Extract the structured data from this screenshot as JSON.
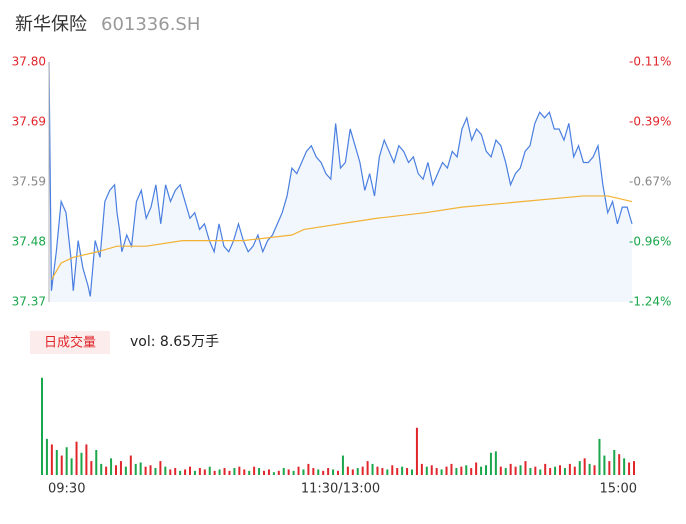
{
  "header": {
    "name": "新华保险",
    "code": "601336.SH"
  },
  "chart_data": [
    {
      "type": "line",
      "xlim": [
        0,
        240
      ],
      "ylim": [
        37.37,
        37.8
      ],
      "yticks": [
        {
          "value": 37.37,
          "label": "37.37"
        },
        {
          "value": 37.4775,
          "label": "37.48"
        },
        {
          "value": 37.585,
          "label": "37.59"
        },
        {
          "value": 37.6925,
          "label": "37.69"
        },
        {
          "value": 37.8,
          "label": "37.80"
        }
      ],
      "ytick_colors": [
        "#1aa64a",
        "#1aa64a",
        "#888888",
        "#e0262b",
        "#e0262b"
      ],
      "y2lim": [
        -1.24,
        -0.11
      ],
      "y2ticks": [
        {
          "value": -1.24,
          "label": "-1.24%"
        },
        {
          "value": -0.9575,
          "label": "-0.96%"
        },
        {
          "value": -0.675,
          "label": "-0.67%"
        },
        {
          "value": -0.3925,
          "label": "-0.39%"
        },
        {
          "value": -0.11,
          "label": "-0.11%"
        }
      ],
      "xticks": [
        {
          "value": 0,
          "label": "09:30"
        },
        {
          "value": 120,
          "label": "11:30/13:00"
        },
        {
          "value": 240,
          "label": "15:00"
        }
      ],
      "series": [
        {
          "color": "#4a7fe0",
          "fill": "#f2f6fd",
          "x": [
            0,
            1,
            3,
            5,
            7,
            9,
            10,
            12,
            14,
            16,
            17,
            19,
            21,
            23,
            25,
            27,
            28,
            29,
            30,
            32,
            34,
            36,
            38,
            40,
            42,
            44,
            46,
            48,
            50,
            52,
            54,
            56,
            58,
            60,
            62,
            64,
            66,
            68,
            70,
            72,
            74,
            76,
            78,
            80,
            82,
            84,
            86,
            88,
            90,
            92,
            94,
            96,
            98,
            100,
            102,
            104,
            106,
            108,
            110,
            112,
            114,
            116,
            118,
            120,
            122,
            124,
            126,
            128,
            130,
            132,
            134,
            136,
            138,
            140,
            142,
            144,
            146,
            148,
            150,
            152,
            154,
            156,
            158,
            160,
            162,
            164,
            166,
            168,
            170,
            172,
            174,
            176,
            178,
            180,
            182,
            184,
            186,
            188,
            190,
            192,
            194,
            196,
            198,
            200,
            202,
            204,
            206,
            208,
            210,
            212,
            214,
            216,
            218,
            220,
            222,
            224,
            226,
            228,
            230,
            232,
            234,
            236,
            238,
            240
          ],
          "values": [
            37.8,
            37.39,
            37.46,
            37.55,
            37.53,
            37.45,
            37.39,
            37.48,
            37.43,
            37.4,
            37.38,
            37.48,
            37.45,
            37.55,
            37.57,
            37.58,
            37.53,
            37.5,
            37.46,
            37.49,
            37.47,
            37.55,
            37.57,
            37.52,
            37.54,
            37.58,
            37.51,
            37.58,
            37.55,
            37.57,
            37.58,
            37.55,
            37.52,
            37.53,
            37.5,
            37.51,
            37.48,
            37.46,
            37.51,
            37.47,
            37.46,
            37.48,
            37.51,
            37.48,
            37.46,
            37.47,
            37.49,
            37.46,
            37.48,
            37.49,
            37.51,
            37.53,
            37.56,
            37.61,
            37.6,
            37.62,
            37.64,
            37.65,
            37.63,
            37.62,
            37.6,
            37.59,
            37.69,
            37.61,
            37.62,
            37.68,
            37.65,
            37.62,
            37.57,
            37.6,
            37.56,
            37.63,
            37.66,
            37.64,
            37.62,
            37.65,
            37.64,
            37.62,
            37.63,
            37.6,
            37.59,
            37.62,
            37.58,
            37.6,
            37.62,
            37.61,
            37.64,
            37.63,
            37.68,
            37.7,
            37.66,
            37.68,
            37.67,
            37.64,
            37.63,
            37.66,
            37.65,
            37.62,
            37.58,
            37.6,
            37.61,
            37.64,
            37.65,
            37.69,
            37.71,
            37.7,
            37.71,
            37.68,
            37.68,
            37.66,
            37.69,
            37.63,
            37.65,
            37.62,
            37.62,
            37.63,
            37.65,
            37.58,
            37.53,
            37.55,
            37.51,
            37.54,
            37.54,
            37.51
          ]
        },
        {
          "color": "#f2b233",
          "x": [
            1,
            5,
            10,
            20,
            28,
            40,
            55,
            80,
            100,
            105,
            135,
            155,
            170,
            195,
            220,
            230,
            240
          ],
          "values": [
            37.41,
            37.44,
            37.45,
            37.46,
            37.47,
            37.47,
            37.48,
            37.48,
            37.49,
            37.5,
            37.52,
            37.53,
            37.54,
            37.55,
            37.56,
            37.56,
            37.55
          ]
        }
      ]
    },
    {
      "type": "bar",
      "label": "日成交量",
      "summary": "vol: 8.65万手",
      "xlim": [
        0,
        240
      ],
      "ylim": [
        0,
        3600
      ],
      "up_color": "#e0262b",
      "down_color": "#1aa64a",
      "x": [
        0,
        2,
        4,
        6,
        8,
        10,
        12,
        14,
        16,
        18,
        20,
        22,
        24,
        26,
        28,
        30,
        32,
        34,
        36,
        38,
        40,
        42,
        44,
        46,
        48,
        50,
        52,
        54,
        56,
        58,
        60,
        62,
        64,
        66,
        68,
        70,
        72,
        74,
        76,
        78,
        80,
        82,
        84,
        86,
        88,
        90,
        92,
        94,
        96,
        98,
        100,
        102,
        104,
        106,
        108,
        110,
        112,
        114,
        116,
        118,
        120,
        122,
        124,
        126,
        128,
        130,
        132,
        134,
        136,
        138,
        140,
        142,
        144,
        146,
        148,
        150,
        152,
        154,
        156,
        158,
        160,
        162,
        164,
        166,
        168,
        170,
        172,
        174,
        176,
        178,
        180,
        182,
        184,
        186,
        188,
        190,
        192,
        194,
        196,
        198,
        200,
        202,
        204,
        206,
        208,
        210,
        212,
        214,
        216,
        218,
        220,
        222,
        224,
        226,
        228,
        230,
        232,
        234,
        236,
        238,
        240
      ],
      "values": [
        3500,
        1300,
        1100,
        900,
        700,
        1000,
        600,
        1200,
        800,
        1100,
        500,
        900,
        400,
        300,
        600,
        350,
        500,
        300,
        700,
        400,
        450,
        300,
        350,
        250,
        500,
        300,
        200,
        250,
        150,
        200,
        300,
        150,
        250,
        200,
        300,
        150,
        200,
        250,
        150,
        250,
        300,
        200,
        150,
        300,
        250,
        150,
        200,
        100,
        150,
        250,
        200,
        150,
        300,
        200,
        400,
        250,
        200,
        150,
        250,
        200,
        150,
        700,
        300,
        200,
        250,
        300,
        500,
        400,
        300,
        250,
        200,
        350,
        250,
        300,
        250,
        200,
        1700,
        400,
        300,
        350,
        250,
        200,
        300,
        400,
        250,
        300,
        350,
        250,
        450,
        300,
        350,
        800,
        850,
        300,
        250,
        400,
        300,
        350,
        500,
        250,
        300,
        200,
        400,
        250,
        300,
        350,
        250,
        400,
        300,
        500,
        600,
        400,
        350,
        1300,
        700,
        500,
        900,
        750,
        600,
        450,
        500
      ],
      "up": [
        0,
        0,
        1,
        0,
        1,
        0,
        0,
        1,
        0,
        1,
        1,
        0,
        0,
        1,
        0,
        1,
        1,
        0,
        1,
        0,
        0,
        1,
        1,
        0,
        1,
        0,
        1,
        1,
        0,
        1,
        1,
        0,
        1,
        1,
        0,
        1,
        0,
        1,
        1,
        0,
        1,
        1,
        0,
        1,
        0,
        1,
        1,
        0,
        1,
        0,
        1,
        0,
        1,
        0,
        1,
        1,
        0,
        1,
        1,
        0,
        1,
        0,
        1,
        1,
        0,
        1,
        1,
        0,
        1,
        1,
        0,
        1,
        1,
        0,
        1,
        0,
        1,
        1,
        0,
        1,
        1,
        0,
        1,
        1,
        0,
        1,
        0,
        1,
        1,
        0,
        0,
        0,
        0,
        1,
        0,
        1,
        1,
        0,
        1,
        0,
        1,
        0,
        1,
        1,
        0,
        1,
        0,
        1,
        1,
        0,
        1,
        0,
        1,
        0,
        0,
        1,
        0,
        1,
        0,
        1,
        1
      ]
    }
  ]
}
